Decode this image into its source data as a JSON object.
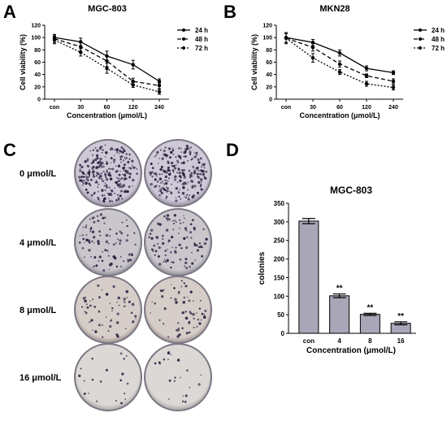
{
  "panels": {
    "A": "A",
    "B": "B",
    "C": "C",
    "D": "D"
  },
  "chart_data": [
    {
      "type": "line",
      "panel": "A",
      "title": "MGC-803",
      "xlabel": "Concentration (μmol/L)",
      "ylabel": "Cell viability (%)",
      "categories": [
        "con",
        "30",
        "60",
        "120",
        "240"
      ],
      "ylim": [
        0,
        120
      ],
      "yticks": [
        0,
        20,
        40,
        60,
        80,
        100,
        120
      ],
      "series": [
        {
          "name": "24 h",
          "values": [
            100,
            93,
            70,
            56,
            29
          ],
          "errors": [
            5,
            6,
            8,
            7,
            4
          ],
          "style": "solid"
        },
        {
          "name": "48 h",
          "values": [
            98,
            85,
            62,
            29,
            22
          ],
          "errors": [
            6,
            7,
            9,
            5,
            5
          ],
          "style": "dashed"
        },
        {
          "name": "72 h",
          "values": [
            96,
            76,
            50,
            23,
            12
          ],
          "errors": [
            6,
            6,
            8,
            4,
            4
          ],
          "style": "dotted"
        }
      ]
    },
    {
      "type": "line",
      "panel": "B",
      "title": "MKN28",
      "xlabel": "Concentration (μmol/L)",
      "ylabel": "Cell viability (%)",
      "categories": [
        "con",
        "30",
        "60",
        "120",
        "240"
      ],
      "ylim": [
        0,
        120
      ],
      "yticks": [
        0,
        20,
        40,
        60,
        80,
        100,
        120
      ],
      "series": [
        {
          "name": "24 h",
          "values": [
            100,
            92,
            75,
            50,
            43
          ],
          "errors": [
            8,
            5,
            5,
            4,
            3
          ],
          "style": "solid"
        },
        {
          "name": "48 h",
          "values": [
            99,
            84,
            57,
            38,
            29
          ],
          "errors": [
            7,
            6,
            5,
            3,
            4
          ],
          "style": "dashed"
        },
        {
          "name": "72 h",
          "values": [
            99,
            67,
            44,
            25,
            19
          ],
          "errors": [
            9,
            7,
            4,
            4,
            4
          ],
          "style": "dotted"
        }
      ]
    },
    {
      "type": "bar",
      "panel": "D",
      "title": "MGC-803",
      "xlabel": "Concentration (μmol/L)",
      "ylabel": "colonies",
      "categories": [
        "con",
        "4",
        "8",
        "16"
      ],
      "values": [
        302,
        101,
        51,
        27
      ],
      "errors": [
        7,
        5,
        3,
        4
      ],
      "significance": [
        "",
        "**",
        "**",
        "**"
      ],
      "ylim": [
        0,
        350
      ],
      "yticks": [
        0,
        50,
        100,
        150,
        200,
        250,
        300,
        350
      ],
      "bar_color": "#a9a6b8"
    }
  ],
  "colony_panel": {
    "rows": [
      "0 μmol/L",
      "4 μmol/L",
      "8 μmol/L",
      "16 μmol/L"
    ],
    "dish_counts": [
      [
        260,
        230
      ],
      [
        90,
        95
      ],
      [
        55,
        60
      ],
      [
        20,
        22
      ]
    ]
  }
}
